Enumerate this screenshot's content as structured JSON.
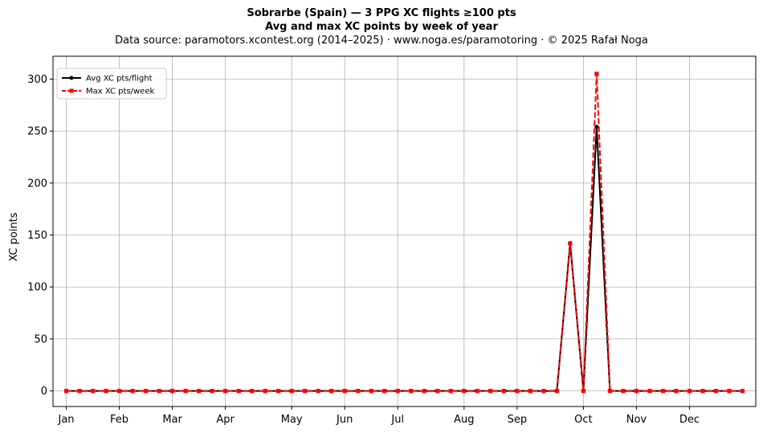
{
  "chart_data": {
    "type": "line",
    "title": "Sobrarbe (Spain)  —  3 PPG XC flights ≥100 pts",
    "subtitle": "Avg and max XC points by week of year",
    "source": "Data source: paramotors.xcontest.org (2014–2025)  ·  www.noga.es/paramotoring  ·  © 2025 Rafał Noga",
    "xlabel": "",
    "ylabel": "XC points",
    "xlim": [
      0,
      53
    ],
    "ylim": [
      -15,
      322
    ],
    "yticks": [
      0,
      50,
      100,
      150,
      200,
      250,
      300
    ],
    "xticks": [
      {
        "label": "Jan",
        "week": 1
      },
      {
        "label": "Feb",
        "week": 5
      },
      {
        "label": "Mar",
        "week": 9
      },
      {
        "label": "Apr",
        "week": 13
      },
      {
        "label": "May",
        "week": 18
      },
      {
        "label": "Jun",
        "week": 22
      },
      {
        "label": "Jul",
        "week": 26
      },
      {
        "label": "Aug",
        "week": 31
      },
      {
        "label": "Sep",
        "week": 35
      },
      {
        "label": "Oct",
        "week": 40
      },
      {
        "label": "Nov",
        "week": 44
      },
      {
        "label": "Dec",
        "week": 48
      }
    ],
    "grid": true,
    "legend_position": "top-left",
    "x": [
      1,
      2,
      3,
      4,
      5,
      6,
      7,
      8,
      9,
      10,
      11,
      12,
      13,
      14,
      15,
      16,
      17,
      18,
      19,
      20,
      21,
      22,
      23,
      24,
      25,
      26,
      27,
      28,
      29,
      30,
      31,
      32,
      33,
      34,
      35,
      36,
      37,
      38,
      39,
      40,
      41,
      42,
      43,
      44,
      45,
      46,
      47,
      48,
      49,
      50,
      51,
      52
    ],
    "series": [
      {
        "name": "Avg XC pts/flight",
        "color": "#000000",
        "style": "solid",
        "marker": "circle",
        "values": [
          0,
          0,
          0,
          0,
          0,
          0,
          0,
          0,
          0,
          0,
          0,
          0,
          0,
          0,
          0,
          0,
          0,
          0,
          0,
          0,
          0,
          0,
          0,
          0,
          0,
          0,
          0,
          0,
          0,
          0,
          0,
          0,
          0,
          0,
          0,
          0,
          0,
          0,
          142,
          0,
          254,
          0,
          0,
          0,
          0,
          0,
          0,
          0,
          0,
          0,
          0,
          0
        ]
      },
      {
        "name": "Max XC pts/week",
        "color": "#ff0000",
        "style": "dashed",
        "marker": "square",
        "values": [
          0,
          0,
          0,
          0,
          0,
          0,
          0,
          0,
          0,
          0,
          0,
          0,
          0,
          0,
          0,
          0,
          0,
          0,
          0,
          0,
          0,
          0,
          0,
          0,
          0,
          0,
          0,
          0,
          0,
          0,
          0,
          0,
          0,
          0,
          0,
          0,
          0,
          0,
          142,
          0,
          305,
          0,
          0,
          0,
          0,
          0,
          0,
          0,
          0,
          0,
          0,
          0
        ]
      }
    ]
  }
}
